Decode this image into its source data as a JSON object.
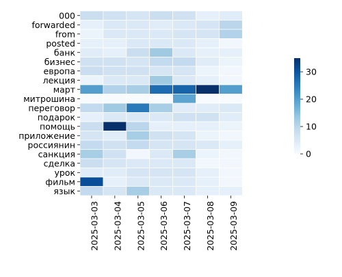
{
  "chart_data": {
    "type": "heatmap",
    "title": "",
    "xlabel": "",
    "ylabel": "",
    "x_categories": [
      "2025-03-03",
      "2025-03-04",
      "2025-03-05",
      "2025-03-06",
      "2025-03-07",
      "2025-03-08",
      "2025-03-09"
    ],
    "y_categories": [
      "000",
      "forwarded",
      "from",
      "posted",
      "банк",
      "бизнес",
      "европа",
      "лекция",
      "март",
      "митрошина",
      "переговор",
      "подарок",
      "помощь",
      "приложение",
      "россиянин",
      "санкция",
      "сделка",
      "урок",
      "фильм",
      "язык"
    ],
    "values": [
      [
        8,
        7,
        6,
        8,
        7,
        3,
        4
      ],
      [
        3,
        5,
        5,
        4,
        5,
        6,
        10
      ],
      [
        2,
        5,
        5,
        5,
        6,
        6,
        11
      ],
      [
        3,
        3,
        5,
        5,
        5,
        3,
        1
      ],
      [
        4,
        3,
        8,
        13,
        5,
        3,
        3
      ],
      [
        7,
        7,
        6,
        9,
        9,
        4,
        2
      ],
      [
        8,
        7,
        7,
        6,
        6,
        2,
        1
      ],
      [
        2,
        5,
        5,
        13,
        5,
        3,
        1
      ],
      [
        20,
        11,
        12,
        27,
        28,
        35,
        20
      ],
      [
        0,
        0,
        0,
        0,
        19,
        0,
        0
      ],
      [
        9,
        13,
        25,
        12,
        4,
        4,
        5
      ],
      [
        3,
        5,
        5,
        5,
        7,
        7,
        4
      ],
      [
        8,
        35,
        10,
        3,
        3,
        3,
        2
      ],
      [
        6,
        4,
        12,
        7,
        6,
        2,
        1
      ],
      [
        9,
        7,
        9,
        6,
        6,
        5,
        3
      ],
      [
        12,
        7,
        1,
        5,
        12,
        2,
        1
      ],
      [
        8,
        6,
        5,
        5,
        5,
        1,
        1
      ],
      [
        4,
        4,
        6,
        6,
        6,
        3,
        1
      ],
      [
        31,
        3,
        5,
        5,
        5,
        3,
        1
      ],
      [
        9,
        6,
        12,
        5,
        5,
        3,
        3
      ]
    ],
    "colorbar": {
      "min": 0,
      "max": 35,
      "ticks": [
        0,
        10,
        20,
        30
      ]
    },
    "colormap": "Blues",
    "grid": false,
    "cell_border_color": "#ffffff"
  }
}
